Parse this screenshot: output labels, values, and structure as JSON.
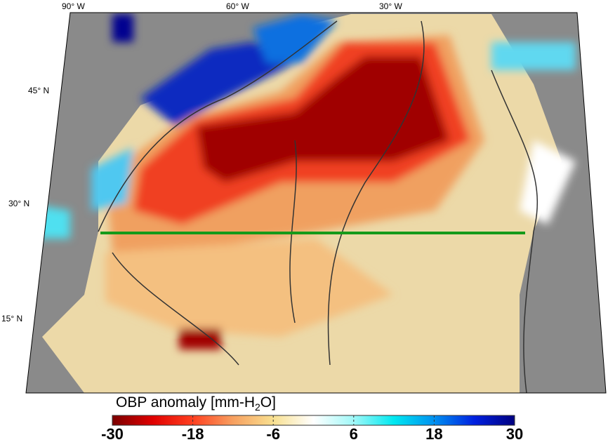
{
  "map": {
    "longitude_labels": [
      "90° W",
      "60° W",
      "30° W"
    ],
    "latitude_labels": [
      "45° N",
      "30° N",
      "15° N"
    ],
    "section_line_color": "#159a1a"
  },
  "colorbar": {
    "title_prefix": "OBP anomaly [mm-H",
    "title_sub": "2",
    "title_suffix": "O]",
    "ticks": [
      "-30",
      "-18",
      "-6",
      "6",
      "18",
      "30"
    ],
    "range": [
      -30,
      30
    ],
    "colors": [
      "#7a0000",
      "#e00000",
      "#ff4020",
      "#f7a060",
      "#f8e090",
      "#ffffff",
      "#a0f8f8",
      "#00e8f0",
      "#0090f0",
      "#0020e0",
      "#000080"
    ]
  }
}
